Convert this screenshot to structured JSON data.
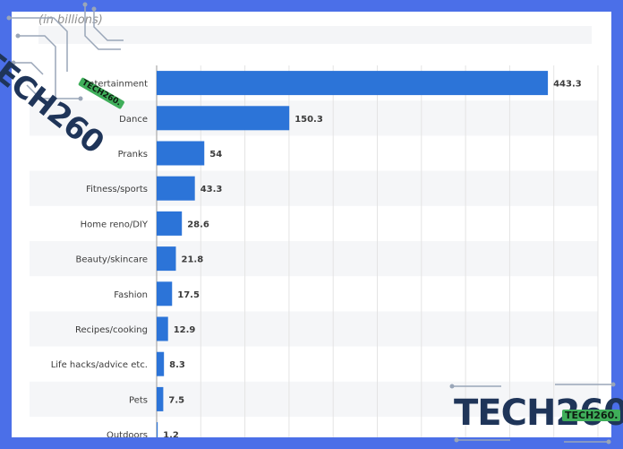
{
  "unit_label": "(in billions)",
  "watermark": {
    "brand": "TECH260",
    "badge": "TECH260.",
    "color": "#1f3559",
    "badge_color": "#3fae5a"
  },
  "colors": {
    "bar": "#2c74d8",
    "grid": "#e4e4e4",
    "stripe": "#f5f6f8",
    "frame": "#4b6fe8"
  },
  "chart_data": {
    "type": "bar",
    "orientation": "horizontal",
    "categories": [
      "Entertainment",
      "Dance",
      "Pranks",
      "Fitness/sports",
      "Home reno/DIY",
      "Beauty/skincare",
      "Fashion",
      "Recipes/cooking",
      "Life hacks/advice etc.",
      "Pets",
      "Outdoors"
    ],
    "values": [
      443.3,
      150.3,
      54,
      43.3,
      28.6,
      21.8,
      17.5,
      12.9,
      8.3,
      7.5,
      1.2
    ],
    "data_labels": [
      "443.3",
      "150.3",
      "54",
      "43.3",
      "28.6",
      "21.8",
      "17.5",
      "12.9",
      "8.3",
      "7.5",
      "1.2"
    ],
    "xlim": [
      0,
      500
    ],
    "grid": true,
    "title": "",
    "xlabel": "",
    "ylabel": ""
  }
}
